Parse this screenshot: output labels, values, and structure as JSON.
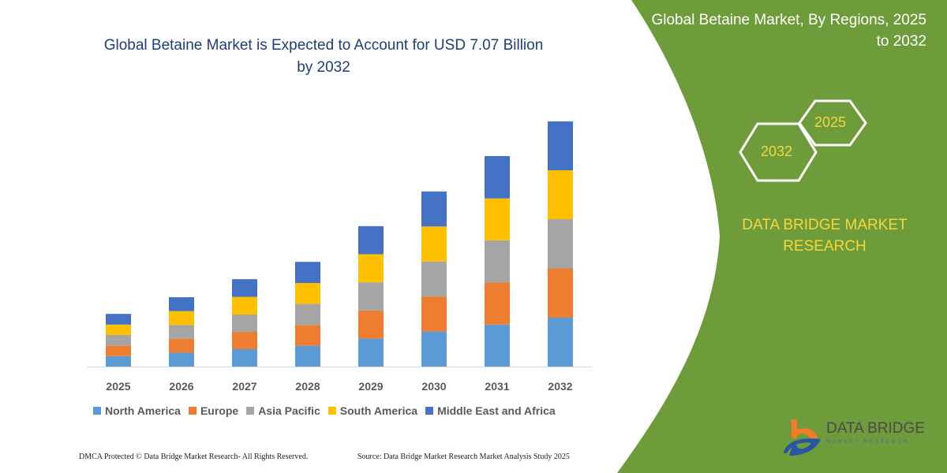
{
  "title": "Global Betaine Market is Expected to Account for USD 7.07 Billion by 2032",
  "side_panel": {
    "title": "Global Betaine Market, By Regions, 2025 to 2032",
    "hex_labels": [
      "2025",
      "2032"
    ],
    "brand": "DATA BRIDGE MARKET RESEARCH",
    "logo_text": "DATA BRIDGE",
    "logo_subtext": "MARKET RESEARCH",
    "panel_color": "#6f9c3a"
  },
  "footer": {
    "left": "DMCA Protected © Data Bridge Market Research-  All Rights Reserved.",
    "right": "Source: Data Bridge Market Research  Market Analysis Study 2025"
  },
  "chart_data": {
    "type": "bar",
    "stacked": true,
    "title": "Global Betaine Market is Expected to Account for USD 7.07 Billion by 2032",
    "categories": [
      "2025",
      "2026",
      "2027",
      "2028",
      "2029",
      "2030",
      "2031",
      "2032"
    ],
    "series": [
      {
        "name": "North America",
        "color": "#5b9bd5",
        "values": [
          0.3,
          0.4,
          0.5,
          0.6,
          0.81,
          1.01,
          1.21,
          1.41
        ]
      },
      {
        "name": "Europe",
        "color": "#ed7d31",
        "values": [
          0.3,
          0.4,
          0.5,
          0.6,
          0.81,
          1.01,
          1.21,
          1.42
        ]
      },
      {
        "name": "Asia Pacific",
        "color": "#a5a5a5",
        "values": [
          0.31,
          0.4,
          0.5,
          0.61,
          0.81,
          1.01,
          1.22,
          1.42
        ]
      },
      {
        "name": "South America",
        "color": "#ffc000",
        "values": [
          0.3,
          0.4,
          0.51,
          0.6,
          0.81,
          1.01,
          1.21,
          1.41
        ]
      },
      {
        "name": "Middle East and Africa",
        "color": "#4472c4",
        "values": [
          0.31,
          0.4,
          0.51,
          0.61,
          0.81,
          1.01,
          1.22,
          1.41
        ]
      }
    ],
    "ylim": [
      0,
      7.07
    ],
    "y_axis_shown": false,
    "grid": false,
    "legend": "bottom"
  }
}
